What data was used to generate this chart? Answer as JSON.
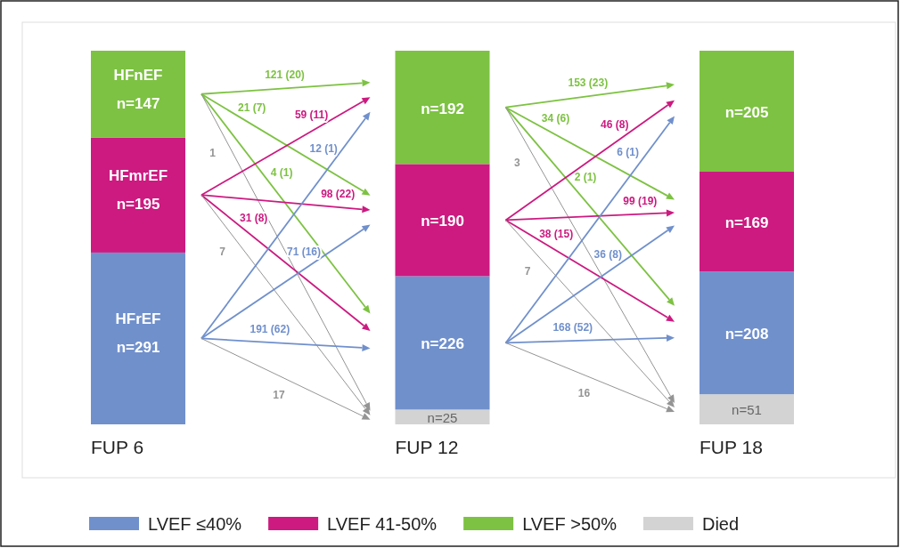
{
  "chart_data": {
    "type": "bar",
    "stacked": true,
    "legend": "bottom",
    "categories": [
      "FUP 6",
      "FUP 12",
      "FUP 18"
    ],
    "series": [
      {
        "name": "Died",
        "color": "#d3d3d3",
        "values": [
          null,
          25,
          51
        ],
        "value_labels": [
          null,
          "n=25",
          "n=51"
        ]
      },
      {
        "name": "LVEF ≤40%",
        "color": "#7090cc",
        "values": [
          291,
          226,
          208
        ],
        "value_labels": [
          "n=291",
          "n=226",
          "n=208"
        ]
      },
      {
        "name": "LVEF 41-50%",
        "color": "#cc1a80",
        "values": [
          195,
          190,
          169
        ],
        "value_labels": [
          "n=195",
          "n=190",
          "n=169"
        ]
      },
      {
        "name": "LVEF >50%",
        "color": "#7dc242",
        "values": [
          147,
          192,
          205
        ],
        "value_labels": [
          "n=147",
          "n=192",
          "n=205"
        ]
      }
    ],
    "annotations": [
      "HFnEF",
      "HFmrEF",
      "HFrEF",
      "121 (20)",
      "21 (7)",
      "4 (1)",
      "1",
      "59 (11)",
      "98 (22)",
      "31 (8)",
      "7",
      "12 (1)",
      "71 (16)",
      "191 (62)",
      "17",
      "153 (23)",
      "34 (6)",
      "2 (1)",
      "3",
      "46 (8)",
      "99 (19)",
      "38 (15)",
      "7",
      "6 (1)",
      "36 (8)",
      "168 (52)",
      "16"
    ]
  }
}
